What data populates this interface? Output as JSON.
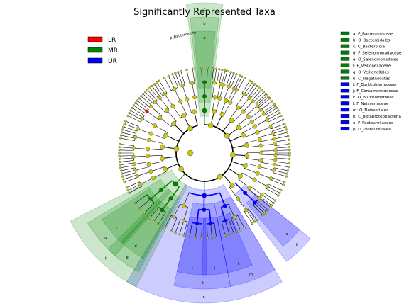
{
  "chart_data": {
    "type": "cladogram",
    "title": "Significantly Represented Taxa",
    "classes": [
      {
        "name": "LR",
        "color": "#ff0000"
      },
      {
        "name": "MR",
        "color": "#008000"
      },
      {
        "name": "UR",
        "color": "#0000ff"
      }
    ],
    "biomarker_legend": [
      {
        "key": "a",
        "taxon": "F_Bacteroidaceae",
        "class": "MR"
      },
      {
        "key": "b",
        "taxon": "O_Bacteroidales",
        "class": "MR"
      },
      {
        "key": "c",
        "taxon": "C_Bacteroidia",
        "class": "MR"
      },
      {
        "key": "d",
        "taxon": "F_Selenomonadaceae",
        "class": "MR"
      },
      {
        "key": "e",
        "taxon": "O_Selenomonadales",
        "class": "MR"
      },
      {
        "key": "f",
        "taxon": "F_Veillonellaceae",
        "class": "MR"
      },
      {
        "key": "g",
        "taxon": "O_Veillonellales",
        "class": "MR"
      },
      {
        "key": "h",
        "taxon": "C_Negativicutes",
        "class": "MR"
      },
      {
        "key": "i",
        "taxon": "F_Burkholderiaceae",
        "class": "UR"
      },
      {
        "key": "j",
        "taxon": "F_Comamonadaceae",
        "class": "UR"
      },
      {
        "key": "k",
        "taxon": "O_Burkholderiales",
        "class": "UR"
      },
      {
        "key": "l",
        "taxon": "F_Neisseriaceae",
        "class": "UR"
      },
      {
        "key": "m",
        "taxon": "O_Neisseriales",
        "class": "UR"
      },
      {
        "key": "n",
        "taxon": "C_Betaproteobacteria",
        "class": "UR"
      },
      {
        "key": "o",
        "taxon": "F_Pasteurellaceae",
        "class": "UR"
      },
      {
        "key": "p",
        "taxon": "O_Pasteurellales",
        "class": "UR"
      }
    ],
    "phylum_label": "p_Bacteroidota",
    "highlight_colors": {
      "MR": "#008000",
      "UR": "#0000ff",
      "LR": "#ff0000",
      "neutral": "#c8c814"
    }
  }
}
